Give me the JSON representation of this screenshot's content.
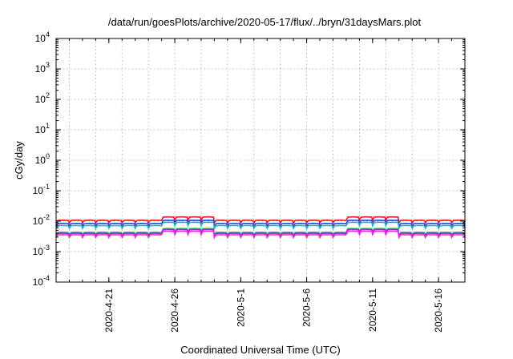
{
  "chart_data": {
    "type": "line",
    "title": "/data/run/goesPlots/archive/2020-05-17/flux/../bryn/31daysMars.plot",
    "xlabel": "Coordinated Universal Time (UTC)",
    "ylabel": "cGy/day",
    "yscale": "log",
    "ylim": [
      0.0001,
      10000
    ],
    "xlim": [
      "2020-04-17",
      "2020-05-18"
    ],
    "grid": true,
    "y_ticks": [
      {
        "base": "10",
        "exp": "-4"
      },
      {
        "base": "10",
        "exp": "-3"
      },
      {
        "base": "10",
        "exp": "-2"
      },
      {
        "base": "10",
        "exp": "-1"
      },
      {
        "base": "10",
        "exp": "0"
      },
      {
        "base": "10",
        "exp": "1"
      },
      {
        "base": "10",
        "exp": "2"
      },
      {
        "base": "10",
        "exp": "3"
      },
      {
        "base": "10",
        "exp": "4"
      }
    ],
    "x_tick_dates": [
      "2020-04-21",
      "2020-04-26",
      "2020-05-01",
      "2020-05-06",
      "2020-05-11",
      "2020-05-16"
    ],
    "x_tick_labels": [
      "2020-4-21",
      "2020-4-26",
      "2020-5-1",
      "2020-5-6",
      "2020-5-11",
      "2020-5-16"
    ],
    "series": [
      {
        "color": "#e8141c",
        "base": 0.0105,
        "amp": 0.0018,
        "elevated": 0.0135
      },
      {
        "color": "#1f3fe0",
        "base": 0.0082,
        "amp": 0.0014,
        "elevated": 0.0105
      },
      {
        "color": "#19b4cc",
        "base": 0.007,
        "amp": 0.0012,
        "elevated": 0.009
      },
      {
        "color": "#2db34a",
        "base": 0.0042,
        "amp": 0.0008,
        "elevated": 0.0056
      },
      {
        "color": "#7a3ad0",
        "base": 0.0039,
        "amp": 0.0007,
        "elevated": 0.0052
      },
      {
        "color": "#ff1ee6",
        "base": 0.0035,
        "amp": 0.0006,
        "elevated": 0.0046
      }
    ],
    "elevated_periods": [
      [
        "2020-04-25",
        "2020-04-29"
      ],
      [
        "2020-05-09",
        "2020-05-13"
      ]
    ]
  }
}
